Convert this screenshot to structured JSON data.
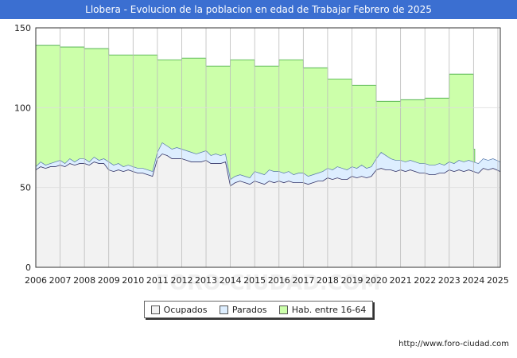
{
  "chart_data": {
    "type": "area",
    "title": "Llobera - Evolucion de la poblacion en edad de Trabajar Febrero de 2025",
    "xlabel": "",
    "ylabel": "",
    "ylim": [
      0,
      150
    ],
    "yticks": [
      0,
      50,
      100,
      150
    ],
    "xlim": [
      2006,
      2025.1
    ],
    "x_tick_labels": [
      "2006",
      "2007",
      "2008",
      "2009",
      "2010",
      "2011",
      "2012",
      "2013",
      "2014",
      "2015",
      "2016",
      "2017",
      "2018",
      "2019",
      "2020",
      "2021",
      "2022",
      "2023",
      "2024",
      "2025"
    ],
    "grid": true,
    "legend_position": "bottom",
    "watermark": "FORO-CIUDAD.COM",
    "series": [
      {
        "name": "Hab. entre 16-64",
        "color": "#ccffaa",
        "line_color": "#44aa44",
        "years": [
          2006,
          2007,
          2008,
          2009,
          2010,
          2011,
          2012,
          2013,
          2014,
          2015,
          2016,
          2017,
          2018,
          2019,
          2020,
          2021,
          2022,
          2023,
          2024
        ],
        "values": [
          139,
          138,
          137,
          133,
          133,
          130,
          131,
          126,
          130,
          126,
          130,
          125,
          118,
          114,
          104,
          105,
          106,
          121,
          74
        ]
      },
      {
        "name": "Parados",
        "color": "#ddeeff",
        "line_color": "#5577aa",
        "x": [
          2006,
          2006.2,
          2006.4,
          2006.6,
          2006.8,
          2007,
          2007.2,
          2007.4,
          2007.6,
          2007.8,
          2008,
          2008.2,
          2008.4,
          2008.6,
          2008.8,
          2009,
          2009.2,
          2009.4,
          2009.6,
          2009.8,
          2010,
          2010.2,
          2010.4,
          2010.6,
          2010.8,
          2011,
          2011.2,
          2011.4,
          2011.6,
          2011.8,
          2012,
          2012.2,
          2012.4,
          2012.6,
          2012.8,
          2013,
          2013.2,
          2013.4,
          2013.6,
          2013.8,
          2014,
          2014.2,
          2014.4,
          2014.6,
          2014.8,
          2015,
          2015.2,
          2015.4,
          2015.6,
          2015.8,
          2016,
          2016.2,
          2016.4,
          2016.6,
          2016.8,
          2017,
          2017.2,
          2017.4,
          2017.6,
          2017.8,
          2018,
          2018.2,
          2018.4,
          2018.6,
          2018.8,
          2019,
          2019.2,
          2019.4,
          2019.6,
          2019.8,
          2020,
          2020.2,
          2020.4,
          2020.6,
          2020.8,
          2021,
          2021.2,
          2021.4,
          2021.6,
          2021.8,
          2022,
          2022.2,
          2022.4,
          2022.6,
          2022.8,
          2023,
          2023.2,
          2023.4,
          2023.6,
          2023.8,
          2024,
          2024.2,
          2024.4,
          2024.6,
          2024.8,
          2025.1
        ],
        "values": [
          63,
          66,
          64,
          65,
          66,
          67,
          65,
          68,
          66,
          68,
          68,
          66,
          69,
          67,
          68,
          66,
          64,
          65,
          63,
          64,
          63,
          62,
          62,
          61,
          60,
          72,
          78,
          76,
          74,
          75,
          74,
          73,
          72,
          71,
          72,
          73,
          70,
          71,
          70,
          71,
          55,
          57,
          58,
          57,
          56,
          60,
          59,
          58,
          61,
          60,
          60,
          59,
          60,
          58,
          59,
          59,
          57,
          58,
          59,
          60,
          62,
          61,
          63,
          62,
          61,
          63,
          62,
          64,
          62,
          63,
          68,
          72,
          70,
          68,
          67,
          67,
          66,
          67,
          66,
          65,
          65,
          64,
          64,
          65,
          64,
          66,
          65,
          67,
          66,
          67,
          66,
          65,
          68,
          67,
          68,
          66
        ]
      },
      {
        "name": "Ocupados",
        "color": "#f2f2f2",
        "line_color": "#333366",
        "x": [
          2006,
          2006.2,
          2006.4,
          2006.6,
          2006.8,
          2007,
          2007.2,
          2007.4,
          2007.6,
          2007.8,
          2008,
          2008.2,
          2008.4,
          2008.6,
          2008.8,
          2009,
          2009.2,
          2009.4,
          2009.6,
          2009.8,
          2010,
          2010.2,
          2010.4,
          2010.6,
          2010.8,
          2011,
          2011.2,
          2011.4,
          2011.6,
          2011.8,
          2012,
          2012.2,
          2012.4,
          2012.6,
          2012.8,
          2013,
          2013.2,
          2013.4,
          2013.6,
          2013.8,
          2014,
          2014.2,
          2014.4,
          2014.6,
          2014.8,
          2015,
          2015.2,
          2015.4,
          2015.6,
          2015.8,
          2016,
          2016.2,
          2016.4,
          2016.6,
          2016.8,
          2017,
          2017.2,
          2017.4,
          2017.6,
          2017.8,
          2018,
          2018.2,
          2018.4,
          2018.6,
          2018.8,
          2019,
          2019.2,
          2019.4,
          2019.6,
          2019.8,
          2020,
          2020.2,
          2020.4,
          2020.6,
          2020.8,
          2021,
          2021.2,
          2021.4,
          2021.6,
          2021.8,
          2022,
          2022.2,
          2022.4,
          2022.6,
          2022.8,
          2023,
          2023.2,
          2023.4,
          2023.6,
          2023.8,
          2024,
          2024.2,
          2024.4,
          2024.6,
          2024.8,
          2025.1
        ],
        "values": [
          61,
          63,
          62,
          63,
          63,
          64,
          63,
          65,
          64,
          65,
          65,
          64,
          66,
          65,
          65,
          61,
          60,
          61,
          60,
          61,
          60,
          59,
          59,
          58,
          57,
          68,
          71,
          70,
          68,
          68,
          68,
          67,
          66,
          66,
          66,
          67,
          65,
          65,
          65,
          66,
          51,
          53,
          54,
          53,
          52,
          54,
          53,
          52,
          54,
          53,
          54,
          53,
          54,
          53,
          53,
          53,
          52,
          53,
          54,
          54,
          56,
          55,
          56,
          55,
          55,
          57,
          56,
          57,
          56,
          57,
          61,
          62,
          61,
          61,
          60,
          61,
          60,
          61,
          60,
          59,
          59,
          58,
          58,
          59,
          59,
          61,
          60,
          61,
          60,
          61,
          60,
          59,
          62,
          61,
          62,
          60
        ]
      }
    ]
  },
  "legend": {
    "items": [
      {
        "label": "Ocupados",
        "color": "#f2f2f2"
      },
      {
        "label": "Parados",
        "color": "#ddeeff"
      },
      {
        "label": "Hab. entre 16-64",
        "color": "#ccffaa"
      }
    ]
  },
  "footer": {
    "url": "http://www.foro-ciudad.com"
  }
}
